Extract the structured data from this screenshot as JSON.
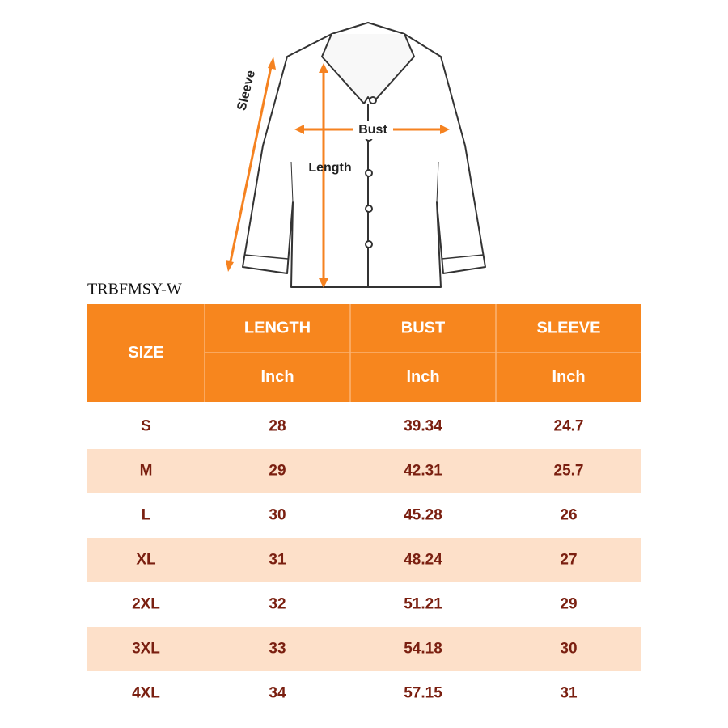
{
  "diagram": {
    "sleeve": "Sleeve",
    "bust": "Bust",
    "length": "Length"
  },
  "model": "TRBFMSY-W",
  "table": {
    "header": [
      "SIZE",
      "LENGTH",
      "BUST",
      "SLEEVE"
    ],
    "units": [
      "Inch",
      "Inch",
      "Inch"
    ],
    "rows": [
      [
        "S",
        "28",
        "39.34",
        "24.7"
      ],
      [
        "M",
        "29",
        "42.31",
        "25.7"
      ],
      [
        "L",
        "30",
        "45.28",
        "26"
      ],
      [
        "XL",
        "31",
        "48.24",
        "27"
      ],
      [
        "2XL",
        "32",
        "51.21",
        "29"
      ],
      [
        "3XL",
        "33",
        "54.18",
        "30"
      ],
      [
        "4XL",
        "34",
        "57.15",
        "31"
      ]
    ]
  }
}
